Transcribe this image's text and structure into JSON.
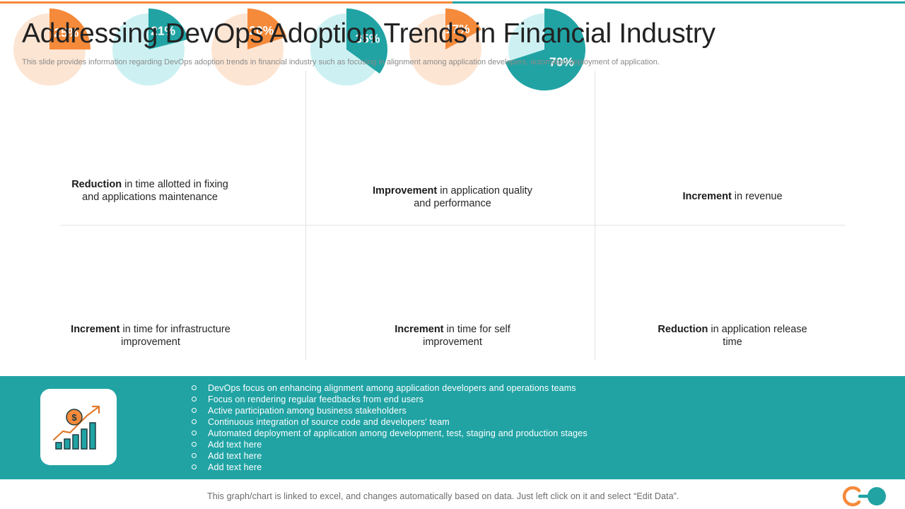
{
  "header": {
    "title": "Addressing DevOps Adoption Trends in Financial Industry",
    "subtitle": "This slide provides information regarding DevOps adoption trends in financial industry such as focusing in alignment among application developers, automated deployment of application."
  },
  "colors": {
    "orange": "#F58A3A",
    "teal": "#21A3A4",
    "peach_light": "#FDE5D3",
    "teal_light": "#CDF1F2",
    "band": "#21A3A4",
    "title": "#222222"
  },
  "chart_data": [
    {
      "type": "pie",
      "value_pct": 25,
      "label": "25%",
      "caption_bold": "Reduction",
      "caption_rest": " in time allotted in fixing and applications maintenance",
      "color": "orange"
    },
    {
      "type": "pie",
      "value_pct": 21,
      "label": "21%",
      "caption_bold": "Improvement",
      "caption_rest": " in application quality and performance",
      "color": "teal"
    },
    {
      "type": "pie",
      "value_pct": 20,
      "label": "20%",
      "caption_bold": "Increment",
      "caption_rest": " in revenue",
      "color": "orange"
    },
    {
      "type": "pie",
      "value_pct": 35,
      "label": "35%",
      "caption_bold": "Increment",
      "caption_rest": " in time for infrastructure improvement",
      "color": "teal"
    },
    {
      "type": "pie",
      "value_pct": 17,
      "label": "17%",
      "caption_bold": "Increment",
      "caption_rest": " in time for self improvement",
      "color": "orange"
    },
    {
      "type": "pie",
      "value_pct": 70,
      "label": "70%",
      "caption_bold": "Reduction",
      "caption_rest": " in application release time",
      "color": "teal"
    }
  ],
  "band": {
    "icon": "growth-chart-dollar-icon",
    "bullets": [
      "DevOps  focus  on  enhancing  alignment  among  application  developers   and  operations  teams",
      "Focus  on  rendering  regular  feedbacks  from  end  users",
      "Active  participation  among  business  stakeholders",
      "Continuous  integration  of  source  code  and  developers'  team",
      "Automated  deployment  of  application  among  development,  test,  staging  and  production  stages",
      "Add text here",
      "Add text here",
      "Add text here"
    ]
  },
  "footer": {
    "note": "This  graph/chart  is  linked  to  excel,  and  changes  automatically  based  on  data.  Just  left  click  on  it  and  select  “Edit  Data”."
  }
}
